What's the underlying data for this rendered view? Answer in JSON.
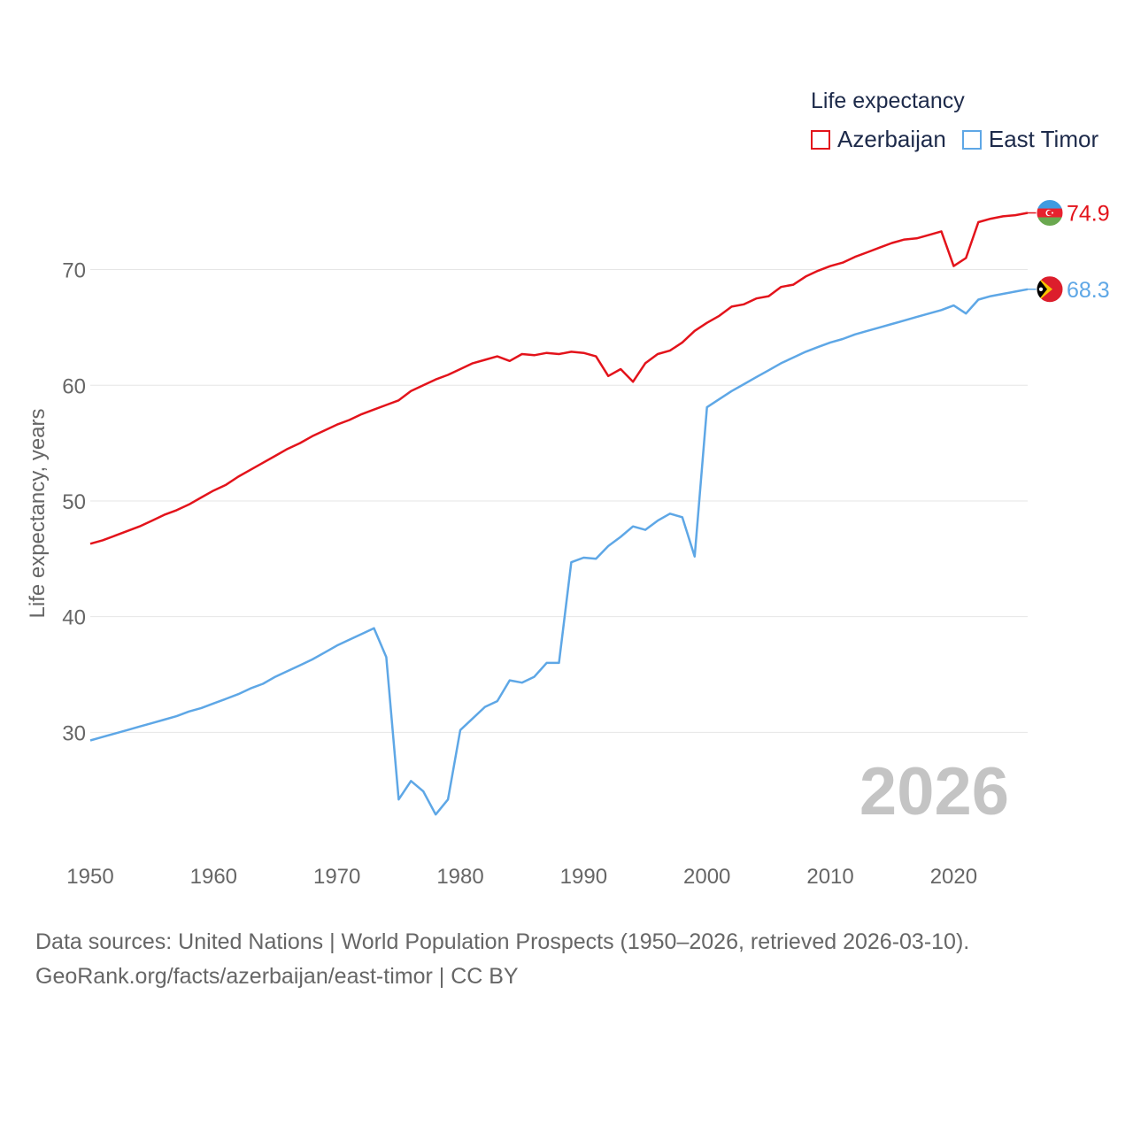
{
  "legend": {
    "title": "Life expectancy",
    "items": [
      {
        "name": "Azerbaijan",
        "color": "#e3131b"
      },
      {
        "name": "East Timor",
        "color": "#5ea7e6"
      }
    ]
  },
  "footer": {
    "line1": "Data sources: United Nations | World Population Prospects (1950–2026, retrieved 2026-03-10).",
    "line2": "GeoRank.org/facts/azerbaijan/east-timor | CC BY"
  },
  "chart_data": {
    "type": "line",
    "title": "Life expectancy",
    "xlabel": "",
    "ylabel": "Life expectancy, years",
    "year_display": "2026",
    "xlim": [
      1950,
      2026
    ],
    "ylim": [
      21,
      78
    ],
    "x_ticks": [
      1950,
      1960,
      1970,
      1980,
      1990,
      2000,
      2010,
      2020
    ],
    "y_ticks": [
      30,
      40,
      50,
      60,
      70
    ],
    "grid": true,
    "legend_position": "top-right",
    "x": [
      1950,
      1951,
      1952,
      1953,
      1954,
      1955,
      1956,
      1957,
      1958,
      1959,
      1960,
      1961,
      1962,
      1963,
      1964,
      1965,
      1966,
      1967,
      1968,
      1969,
      1970,
      1971,
      1972,
      1973,
      1974,
      1975,
      1976,
      1977,
      1978,
      1979,
      1980,
      1981,
      1982,
      1983,
      1984,
      1985,
      1986,
      1987,
      1988,
      1989,
      1990,
      1991,
      1992,
      1993,
      1994,
      1995,
      1996,
      1997,
      1998,
      1999,
      2000,
      2001,
      2002,
      2003,
      2004,
      2005,
      2006,
      2007,
      2008,
      2009,
      2010,
      2011,
      2012,
      2013,
      2014,
      2015,
      2016,
      2017,
      2018,
      2019,
      2020,
      2021,
      2022,
      2023,
      2024,
      2025,
      2026
    ],
    "series": [
      {
        "name": "Azerbaijan",
        "color": "#e3131b",
        "end_label": "74.9",
        "values": [
          46.3,
          46.6,
          47.0,
          47.4,
          47.8,
          48.3,
          48.8,
          49.2,
          49.7,
          50.3,
          50.9,
          51.4,
          52.1,
          52.7,
          53.3,
          53.9,
          54.5,
          55.0,
          55.6,
          56.1,
          56.6,
          57.0,
          57.5,
          57.9,
          58.3,
          58.7,
          59.5,
          60.0,
          60.5,
          60.9,
          61.4,
          61.9,
          62.2,
          62.5,
          62.1,
          62.7,
          62.6,
          62.8,
          62.7,
          62.9,
          62.8,
          62.5,
          60.8,
          61.4,
          60.3,
          61.9,
          62.7,
          63.0,
          63.7,
          64.7,
          65.4,
          66.0,
          66.8,
          67.0,
          67.5,
          67.7,
          68.5,
          68.7,
          69.4,
          69.9,
          70.3,
          70.6,
          71.1,
          71.5,
          71.9,
          72.3,
          72.6,
          72.7,
          73.0,
          73.3,
          70.3,
          71.0,
          74.1,
          74.4,
          74.6,
          74.7,
          74.9
        ]
      },
      {
        "name": "East Timor",
        "color": "#5ea7e6",
        "end_label": "68.3",
        "values": [
          29.3,
          29.6,
          29.9,
          30.2,
          30.5,
          30.8,
          31.1,
          31.4,
          31.8,
          32.1,
          32.5,
          32.9,
          33.3,
          33.8,
          34.2,
          34.8,
          35.3,
          35.8,
          36.3,
          36.9,
          37.5,
          38.0,
          38.5,
          39.0,
          36.5,
          24.2,
          25.8,
          24.9,
          22.9,
          24.2,
          30.2,
          31.2,
          32.2,
          32.7,
          34.5,
          34.3,
          34.8,
          36.0,
          36.0,
          44.7,
          45.1,
          45.0,
          46.1,
          46.9,
          47.8,
          47.5,
          48.3,
          48.9,
          48.6,
          45.2,
          58.1,
          58.8,
          59.5,
          60.1,
          60.7,
          61.3,
          61.9,
          62.4,
          62.9,
          63.3,
          63.7,
          64.0,
          64.4,
          64.7,
          65.0,
          65.3,
          65.6,
          65.9,
          66.2,
          66.5,
          66.9,
          66.2,
          67.4,
          67.7,
          67.9,
          68.1,
          68.3
        ]
      }
    ]
  }
}
